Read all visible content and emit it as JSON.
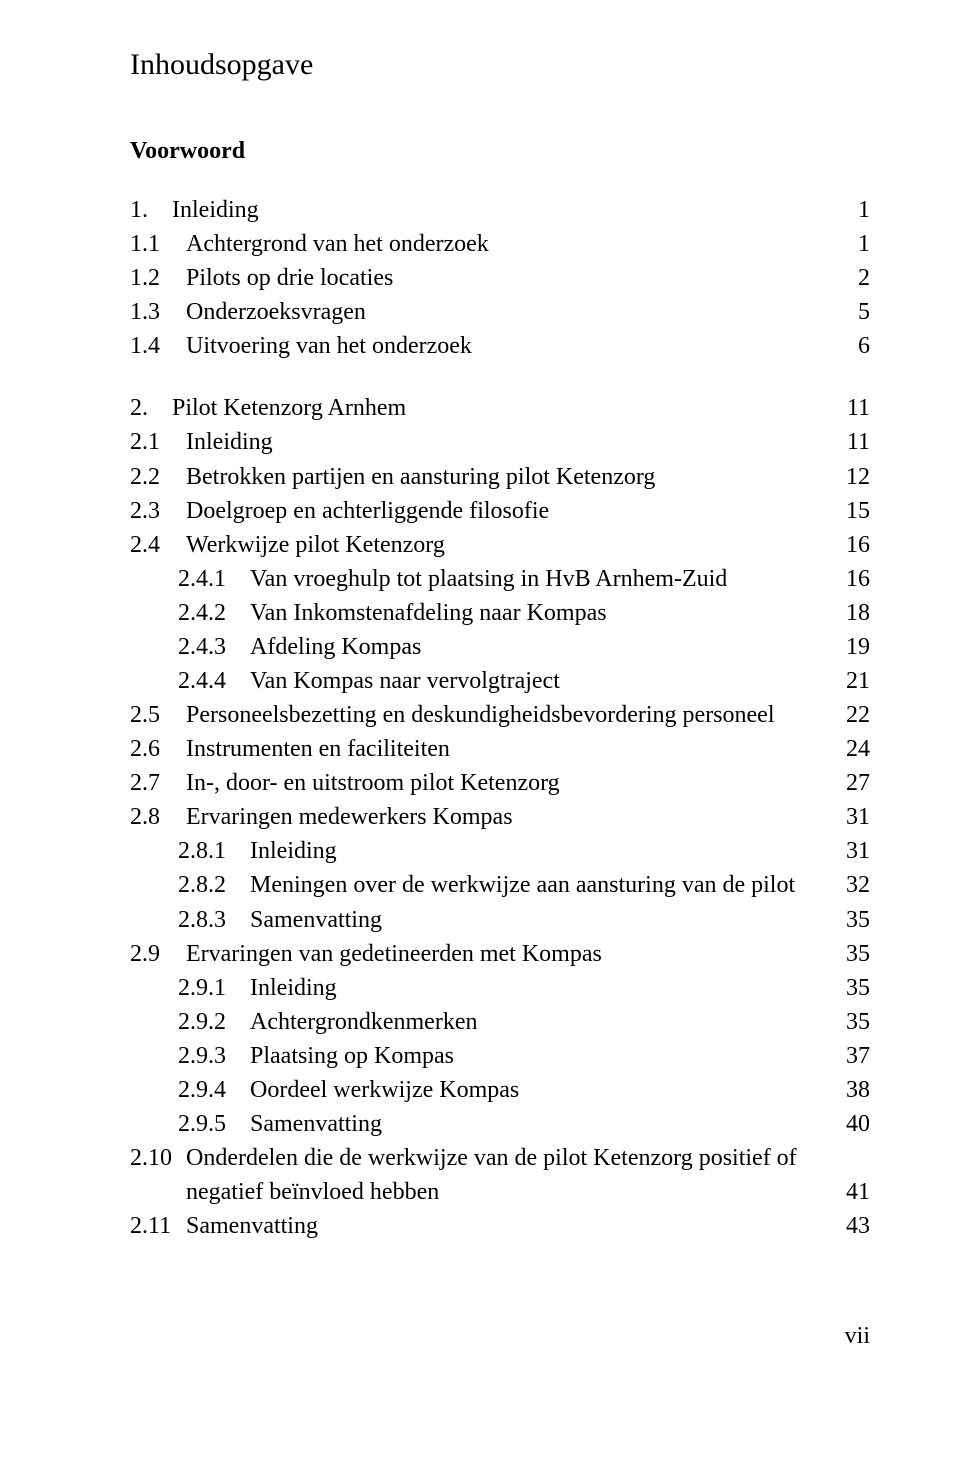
{
  "title": "Inhoudsopgave",
  "voorwoord": "Voorwoord",
  "chapters": [
    {
      "num": "1.",
      "label": "Inleiding",
      "page": "1",
      "items": [
        {
          "num": "1.1",
          "label": "Achtergrond van het onderzoek",
          "page": "1"
        },
        {
          "num": "1.2",
          "label": "Pilots op drie locaties",
          "page": "2"
        },
        {
          "num": "1.3",
          "label": "Onderzoeksvragen",
          "page": "5"
        },
        {
          "num": "1.4",
          "label": "Uitvoering van het onderzoek",
          "page": "6"
        }
      ]
    },
    {
      "num": "2.",
      "label": "Pilot Ketenzorg Arnhem",
      "page": "11",
      "items": [
        {
          "num": "2.1",
          "label": "Inleiding",
          "page": "11"
        },
        {
          "num": "2.2",
          "label": "Betrokken partijen en aansturing pilot Ketenzorg",
          "page": "12"
        },
        {
          "num": "2.3",
          "label": "Doelgroep en achterliggende filosofie",
          "page": "15"
        },
        {
          "num": "2.4",
          "label": "Werkwijze pilot Ketenzorg",
          "page": "16",
          "sub": [
            {
              "num": "2.4.1",
              "label": "Van vroeghulp tot plaatsing in HvB Arnhem-Zuid",
              "page": "16"
            },
            {
              "num": "2.4.2",
              "label": "Van Inkomstenafdeling naar Kompas",
              "page": "18"
            },
            {
              "num": "2.4.3",
              "label": "Afdeling Kompas",
              "page": "19"
            },
            {
              "num": "2.4.4",
              "label": "Van Kompas naar vervolgtraject",
              "page": "21"
            }
          ]
        },
        {
          "num": "2.5",
          "label": "Personeelsbezetting en deskundigheidsbevordering personeel",
          "page": "22"
        },
        {
          "num": "2.6",
          "label": "Instrumenten en faciliteiten",
          "page": "24"
        },
        {
          "num": "2.7",
          "label": "In-, door- en uitstroom pilot Ketenzorg",
          "page": "27"
        },
        {
          "num": "2.8",
          "label": "Ervaringen medewerkers Kompas",
          "page": "31",
          "sub": [
            {
              "num": "2.8.1",
              "label": "Inleiding",
              "page": "31"
            },
            {
              "num": "2.8.2",
              "label": "Meningen over de werkwijze aan aansturing van de pilot",
              "page": "32"
            },
            {
              "num": "2.8.3",
              "label": "Samenvatting",
              "page": "35"
            }
          ]
        },
        {
          "num": "2.9",
          "label": "Ervaringen van gedetineerden met Kompas",
          "page": "35",
          "sub": [
            {
              "num": "2.9.1",
              "label": "Inleiding",
              "page": "35"
            },
            {
              "num": "2.9.2",
              "label": "Achtergrondkenmerken",
              "page": "35"
            },
            {
              "num": "2.9.3",
              "label": "Plaatsing op Kompas",
              "page": "37"
            },
            {
              "num": "2.9.4",
              "label": "Oordeel werkwijze Kompas",
              "page": "38"
            },
            {
              "num": "2.9.5",
              "label": "Samenvatting",
              "page": "40"
            }
          ]
        },
        {
          "num": "2.10",
          "label_line1": "Onderdelen die de werkwijze van de pilot Ketenzorg positief of",
          "label_line2": "negatief beïnvloed hebben",
          "page": "41"
        },
        {
          "num": "2.11",
          "label": "Samenvatting",
          "page": "43"
        }
      ]
    }
  ],
  "footer": "vii"
}
